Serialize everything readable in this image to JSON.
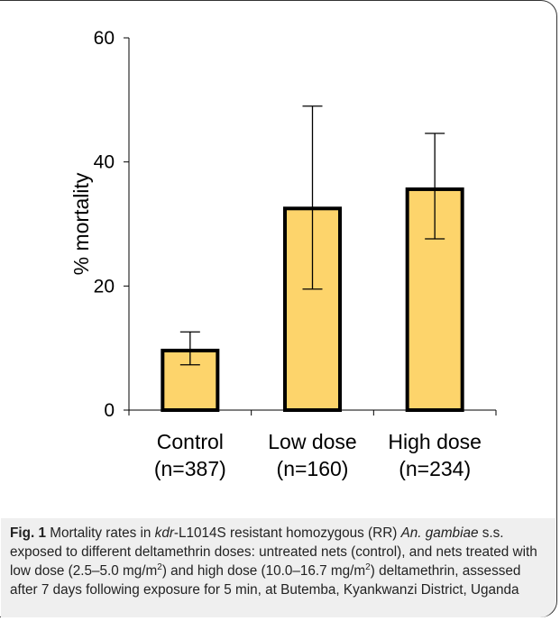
{
  "chart_data": {
    "type": "bar",
    "title": "",
    "xlabel": "",
    "ylabel": "% mortality",
    "ylim": [
      0,
      60
    ],
    "yticks": [
      0,
      20,
      40,
      60
    ],
    "categories": [
      {
        "line1": "Control",
        "line2": "(n=387)"
      },
      {
        "line1": "Low dose",
        "line2": "(n=160)"
      },
      {
        "line1": "High dose",
        "line2": "(n=234)"
      }
    ],
    "values": [
      9.6,
      32.5,
      35.6
    ],
    "error_low": [
      7.3,
      19.5,
      27.6
    ],
    "error_high": [
      12.6,
      49.0,
      44.6
    ],
    "bar_color": "#fdd46b",
    "bar_edge_color": "#000000",
    "grid": false,
    "legend": "none"
  },
  "caption": {
    "fig_label": "Fig. 1",
    "parts": [
      {
        "t": " Mortality rates in ",
        "s": "n"
      },
      {
        "t": "kdr",
        "s": "i"
      },
      {
        "t": "-L1014S resistant homozygous (RR) ",
        "s": "n"
      },
      {
        "t": "An. gambiae",
        "s": "i"
      },
      {
        "t": " s.s. exposed to different deltamethrin doses: untreated nets (control), and nets treated with low dose (2.5–5.0 mg/m",
        "s": "n"
      },
      {
        "t": "2",
        "s": "sup"
      },
      {
        "t": ") and high dose (10.0–16.7 mg/m",
        "s": "n"
      },
      {
        "t": "2",
        "s": "sup"
      },
      {
        "t": ") deltamethrin, assessed after 7 days following exposure for 5 min, at Butemba, Kyankwanzi District, Uganda",
        "s": "n"
      }
    ]
  }
}
